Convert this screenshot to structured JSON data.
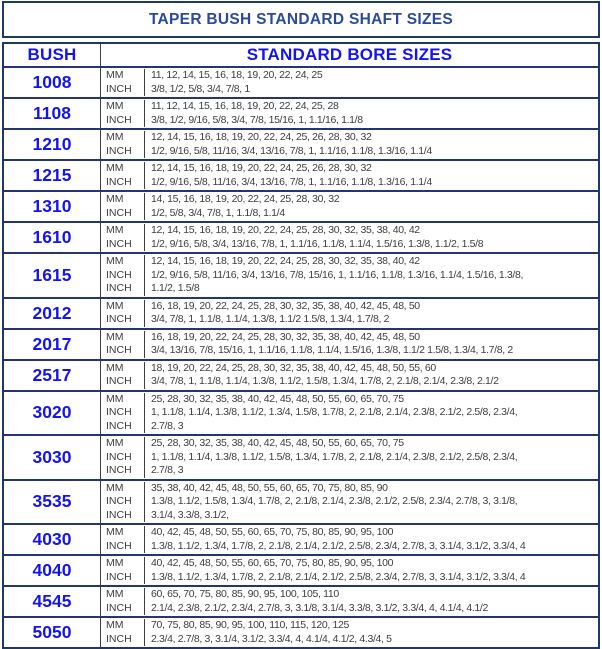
{
  "title": "TAPER BUSH STANDARD SHAFT SIZES",
  "header": {
    "bush": "BUSH",
    "bore": "STANDARD BORE SIZES"
  },
  "colors": {
    "title_navy": "#2b4a9c",
    "accent_blue": "#1414f0",
    "border_navy": "#203864",
    "grid_gray": "#3f3f3f",
    "text_gray": "#3d3d3d"
  },
  "rows": [
    {
      "bush": "1008",
      "lines": [
        {
          "unit": "MM",
          "values": "11, 12, 14, 15, 16, 18, 19, 20, 22, 24, 25"
        },
        {
          "unit": "INCH",
          "values": "3/8, 1/2, 5/8, 3/4, 7/8, 1"
        }
      ]
    },
    {
      "bush": "1108",
      "lines": [
        {
          "unit": "MM",
          "values": "11, 12, 14, 15, 16, 18, 19, 20, 22, 24, 25, 28"
        },
        {
          "unit": "INCH",
          "values": "3/8, 1/2, 9/16, 5/8, 3/4, 7/8, 15/16, 1, 1.1/16, 1.1/8"
        }
      ]
    },
    {
      "bush": "1210",
      "lines": [
        {
          "unit": "MM",
          "values": "12, 14, 15, 16, 18, 19, 20, 22, 24, 25, 26, 28, 30, 32"
        },
        {
          "unit": "INCH",
          "values": "1/2, 9/16, 5/8, 11/16, 3/4, 13/16, 7/8, 1, 1.1/16, 1.1/8, 1.3/16, 1.1/4"
        }
      ]
    },
    {
      "bush": "1215",
      "lines": [
        {
          "unit": "MM",
          "values": "12, 14, 15, 16, 18, 19, 20, 22, 24, 25, 26, 28, 30, 32"
        },
        {
          "unit": "INCH",
          "values": "1/2, 9/16, 5/8, 11/16, 3/4, 13/16, 7/8, 1, 1.1/16, 1.1/8, 1.3/16, 1.1/4"
        }
      ]
    },
    {
      "bush": "1310",
      "lines": [
        {
          "unit": "MM",
          "values": "14, 15, 16, 18, 19, 20, 22, 24, 25, 28, 30, 32"
        },
        {
          "unit": "INCH",
          "values": "1/2, 5/8, 3/4, 7/8, 1, 1.1/8, 1.1/4"
        }
      ]
    },
    {
      "bush": "1610",
      "lines": [
        {
          "unit": "MM",
          "values": "12, 14, 15, 16, 18, 19, 20, 22, 24, 25, 28, 30, 32, 35, 38, 40, 42"
        },
        {
          "unit": "INCH",
          "values": "1/2, 9/16, 5/8, 3/4, 13/16, 7/8, 1, 1.1/16, 1.1/8, 1.1/4, 1.5/16, 1.3/8, 1.1/2, 1.5/8"
        }
      ]
    },
    {
      "bush": "1615",
      "lines": [
        {
          "unit": "MM",
          "values": "12, 14, 15, 16, 18, 19, 20, 22, 24, 25, 28, 30, 32, 35, 38, 40, 42"
        },
        {
          "unit": "INCH",
          "values": "1/2, 9/16, 5/8, 11/16, 3/4, 13/16, 7/8, 15/16, 1, 1.1/16, 1.1/8, 1.3/16, 1.1/4, 1.5/16, 1.3/8,"
        },
        {
          "unit": "INCH",
          "values": "1.1/2, 1.5/8"
        }
      ]
    },
    {
      "bush": "2012",
      "lines": [
        {
          "unit": "MM",
          "values": "16, 18, 19, 20, 22, 24, 25, 28, 30, 32, 35, 38, 40, 42, 45, 48, 50"
        },
        {
          "unit": "INCH",
          "values": "3/4, 7/8, 1, 1.1/8, 1.1/4, 1.3/8, 1.1/2 1.5/8, 1.3/4, 1.7/8, 2"
        }
      ]
    },
    {
      "bush": "2017",
      "lines": [
        {
          "unit": "MM",
          "values": "16, 18, 19, 20, 22, 24, 25, 28, 30, 32, 35, 38, 40, 42, 45, 48, 50"
        },
        {
          "unit": "INCH",
          "values": "3/4, 13/16, 7/8, 15/16, 1, 1.1/16, 1.1/8, 1.1/4, 1.5/16, 1.3/8, 1.1/2 1.5/8, 1.3/4, 1.7/8, 2"
        }
      ]
    },
    {
      "bush": "2517",
      "lines": [
        {
          "unit": "MM",
          "values": "18, 19, 20, 22, 24, 25, 28, 30, 32, 35, 38, 40, 42, 45, 48, 50, 55, 60"
        },
        {
          "unit": "INCH",
          "values": "3/4, 7/8, 1, 1.1/8, 1.1/4, 1.3/8, 1.1/2, 1.5/8, 1.3/4, 1.7/8, 2, 2.1/8, 2.1/4, 2.3/8, 2.1/2"
        }
      ]
    },
    {
      "bush": "3020",
      "lines": [
        {
          "unit": "MM",
          "values": "25, 28, 30, 32, 35, 38, 40, 42, 45, 48, 50, 55, 60, 65, 70, 75"
        },
        {
          "unit": "INCH",
          "values": "1, 1.1/8, 1.1/4, 1.3/8, 1.1/2, 1.3/4, 1.5/8, 1.7/8, 2, 2.1/8, 2.1/4, 2.3/8, 2.1/2, 2.5/8, 2.3/4,"
        },
        {
          "unit": "INCH",
          "values": "2.7/8, 3"
        }
      ]
    },
    {
      "bush": "3030",
      "lines": [
        {
          "unit": "MM",
          "values": "25, 28, 30, 32, 35, 38, 40, 42, 45, 48, 50, 55, 60, 65, 70, 75"
        },
        {
          "unit": "INCH",
          "values": "1, 1.1/8, 1.1/4, 1.3/8, 1.1/2, 1.5/8, 1.3/4, 1.7/8, 2, 2.1/8, 2.1/4, 2.3/8, 2.1/2, 2.5/8, 2.3/4,"
        },
        {
          "unit": "INCH",
          "values": "2.7/8, 3"
        }
      ]
    },
    {
      "bush": "3535",
      "lines": [
        {
          "unit": "MM",
          "values": "35, 38, 40, 42, 45, 48, 50, 55, 60, 65, 70, 75, 80, 85, 90"
        },
        {
          "unit": "INCH",
          "values": "1.3/8, 1.1/2, 1.5/8, 1.3/4, 1.7/8, 2, 2.1/8, 2.1/4, 2.3/8, 2.1/2, 2.5/8, 2.3/4, 2.7/8, 3, 3.1/8,"
        },
        {
          "unit": "INCH",
          "values": "3.1/4, 3.3/8, 3.1/2,"
        }
      ]
    },
    {
      "bush": "4030",
      "lines": [
        {
          "unit": "MM",
          "values": "40, 42, 45, 48, 50, 55, 60, 65, 70, 75, 80, 85, 90, 95, 100"
        },
        {
          "unit": "INCH",
          "values": "1.3/8, 1.1/2, 1.3/4, 1.7/8, 2, 2.1/8, 2.1/4, 2.1/2, 2.5/8, 2.3/4, 2.7/8, 3, 3.1/4, 3.1/2, 3.3/4, 4"
        }
      ]
    },
    {
      "bush": "4040",
      "lines": [
        {
          "unit": "MM",
          "values": "40, 42, 45, 48, 50, 55, 60, 65, 70, 75, 80, 85, 90, 95, 100"
        },
        {
          "unit": "INCH",
          "values": "1.3/8, 1.1/2, 1.3/4, 1.7/8, 2, 2.1/8, 2.1/4, 2.1/2, 2.5/8, 2.3/4, 2.7/8, 3, 3.1/4, 3.1/2, 3.3/4, 4"
        }
      ]
    },
    {
      "bush": "4545",
      "lines": [
        {
          "unit": "MM",
          "values": "60, 65, 70, 75, 80, 85, 90, 95, 100, 105, 110"
        },
        {
          "unit": "INCH",
          "values": "2.1/4, 2.3/8, 2.1/2, 2.3/4, 2.7/8, 3, 3.1/8, 3.1/4, 3.3/8, 3.1/2, 3.3/4, 4, 4.1/4, 4.1/2"
        }
      ]
    },
    {
      "bush": "5050",
      "lines": [
        {
          "unit": "MM",
          "values": "70, 75, 80, 85, 90, 95, 100, 110, 115, 120, 125"
        },
        {
          "unit": "INCH",
          "values": "2.3/4, 2.7/8, 3, 3.1/4, 3.1/2, 3.3/4, 4, 4.1/4, 4.1/2, 4.3/4, 5"
        }
      ]
    }
  ]
}
